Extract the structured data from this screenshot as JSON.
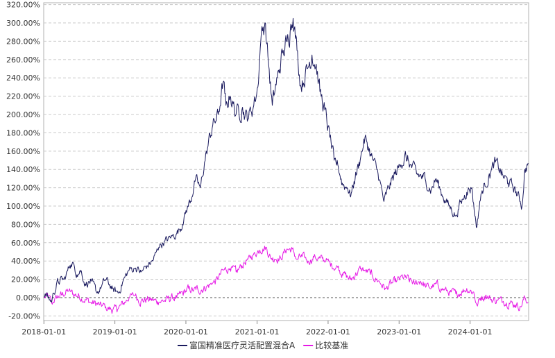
{
  "chart_data": {
    "type": "line",
    "title": "",
    "xlabel": "",
    "ylabel": "",
    "y_unit": "%",
    "ylim": [
      -25,
      322
    ],
    "xlim": [
      "2017-12-31",
      "2024-10-28"
    ],
    "grid": "horizontal-dashed",
    "zero_line": "dashed",
    "legend_position": "bottom-center",
    "y_ticks": [
      {
        "value": 320,
        "label": "320.00%"
      },
      {
        "value": 300,
        "label": "300.00%"
      },
      {
        "value": 280,
        "label": "280.00%"
      },
      {
        "value": 260,
        "label": "260.00%"
      },
      {
        "value": 240,
        "label": "240.00%"
      },
      {
        "value": 220,
        "label": "220.00%"
      },
      {
        "value": 200,
        "label": "200.00%"
      },
      {
        "value": 180,
        "label": "180.00%"
      },
      {
        "value": 160,
        "label": "160.00%"
      },
      {
        "value": 140,
        "label": "140.00%"
      },
      {
        "value": 120,
        "label": "120.00%"
      },
      {
        "value": 100,
        "label": "100.00%"
      },
      {
        "value": 80,
        "label": "80.00%"
      },
      {
        "value": 60,
        "label": "60.00%"
      },
      {
        "value": 40,
        "label": "40.00%"
      },
      {
        "value": 20,
        "label": "20.00%"
      },
      {
        "value": 0,
        "label": "0.00%"
      },
      {
        "value": -20,
        "label": "-20.00%"
      }
    ],
    "x_ticks": [
      {
        "date": "2018-01-01",
        "label": "2018-01-01"
      },
      {
        "date": "2019-01-01",
        "label": "2019-01-01"
      },
      {
        "date": "2020-01-01",
        "label": "2020-01-01"
      },
      {
        "date": "2021-01-01",
        "label": "2021-01-01"
      },
      {
        "date": "2022-01-01",
        "label": "2022-01-01"
      },
      {
        "date": "2023-01-01",
        "label": "2023-01-01"
      },
      {
        "date": "2024-01-01",
        "label": "2024-01-01"
      }
    ],
    "series": [
      {
        "name": "富国精准医疗灵活配置混合A",
        "color": "#1a1a5e",
        "points": [
          [
            "2018-01-02",
            0
          ],
          [
            "2018-01-20",
            2
          ],
          [
            "2018-02-10",
            -5
          ],
          [
            "2018-02-20",
            5
          ],
          [
            "2018-03-15",
            18
          ],
          [
            "2018-04-15",
            20
          ],
          [
            "2018-05-15",
            35
          ],
          [
            "2018-06-01",
            38
          ],
          [
            "2018-06-20",
            25
          ],
          [
            "2018-07-10",
            30
          ],
          [
            "2018-08-01",
            15
          ],
          [
            "2018-09-01",
            18
          ],
          [
            "2018-10-01",
            5
          ],
          [
            "2018-10-20",
            10
          ],
          [
            "2018-11-15",
            20
          ],
          [
            "2018-12-20",
            10
          ],
          [
            "2019-01-20",
            5
          ],
          [
            "2019-02-15",
            20
          ],
          [
            "2019-03-15",
            30
          ],
          [
            "2019-04-15",
            32
          ],
          [
            "2019-05-15",
            28
          ],
          [
            "2019-06-15",
            35
          ],
          [
            "2019-07-15",
            40
          ],
          [
            "2019-08-15",
            55
          ],
          [
            "2019-09-15",
            62
          ],
          [
            "2019-10-15",
            65
          ],
          [
            "2019-11-15",
            70
          ],
          [
            "2019-12-15",
            80
          ],
          [
            "2020-01-10",
            100
          ],
          [
            "2020-02-01",
            110
          ],
          [
            "2020-02-20",
            130
          ],
          [
            "2020-03-15",
            120
          ],
          [
            "2020-04-15",
            160
          ],
          [
            "2020-05-15",
            185
          ],
          [
            "2020-06-15",
            200
          ],
          [
            "2020-07-10",
            235
          ],
          [
            "2020-07-25",
            210
          ],
          [
            "2020-08-15",
            220
          ],
          [
            "2020-09-15",
            200
          ],
          [
            "2020-10-15",
            205
          ],
          [
            "2020-11-15",
            195
          ],
          [
            "2020-12-15",
            210
          ],
          [
            "2021-01-05",
            230
          ],
          [
            "2021-01-20",
            280
          ],
          [
            "2021-02-10",
            300
          ],
          [
            "2021-03-01",
            255
          ],
          [
            "2021-03-20",
            210
          ],
          [
            "2021-04-15",
            240
          ],
          [
            "2021-05-15",
            270
          ],
          [
            "2021-06-01",
            280
          ],
          [
            "2021-06-20",
            290
          ],
          [
            "2021-07-05",
            305
          ],
          [
            "2021-07-25",
            270
          ],
          [
            "2021-08-15",
            230
          ],
          [
            "2021-09-15",
            250
          ],
          [
            "2021-10-10",
            265
          ],
          [
            "2021-11-01",
            255
          ],
          [
            "2021-11-20",
            225
          ],
          [
            "2021-12-15",
            205
          ],
          [
            "2022-01-10",
            175
          ],
          [
            "2022-02-01",
            150
          ],
          [
            "2022-02-20",
            145
          ],
          [
            "2022-03-15",
            125
          ],
          [
            "2022-04-10",
            120
          ],
          [
            "2022-04-27",
            110
          ],
          [
            "2022-05-20",
            130
          ],
          [
            "2022-06-15",
            150
          ],
          [
            "2022-07-01",
            165
          ],
          [
            "2022-07-15",
            175
          ],
          [
            "2022-08-10",
            155
          ],
          [
            "2022-09-15",
            135
          ],
          [
            "2022-10-15",
            105
          ],
          [
            "2022-11-10",
            120
          ],
          [
            "2022-12-10",
            135
          ],
          [
            "2023-01-10",
            145
          ],
          [
            "2023-02-05",
            155
          ],
          [
            "2023-03-01",
            145
          ],
          [
            "2023-04-01",
            135
          ],
          [
            "2023-05-15",
            130
          ],
          [
            "2023-06-15",
            118
          ],
          [
            "2023-07-10",
            130
          ],
          [
            "2023-08-15",
            110
          ],
          [
            "2023-09-15",
            100
          ],
          [
            "2023-10-20",
            90
          ],
          [
            "2023-11-15",
            105
          ],
          [
            "2023-12-15",
            115
          ],
          [
            "2024-01-10",
            120
          ],
          [
            "2024-01-22",
            95
          ],
          [
            "2024-02-05",
            77
          ],
          [
            "2024-02-20",
            105
          ],
          [
            "2024-03-15",
            125
          ],
          [
            "2024-04-15",
            135
          ],
          [
            "2024-05-10",
            148
          ],
          [
            "2024-06-15",
            135
          ],
          [
            "2024-07-15",
            125
          ],
          [
            "2024-08-15",
            120
          ],
          [
            "2024-09-15",
            105
          ],
          [
            "2024-09-24",
            100
          ],
          [
            "2024-10-08",
            140
          ],
          [
            "2024-10-25",
            147
          ]
        ]
      },
      {
        "name": "比较基准",
        "color": "#e619e6",
        "points": [
          [
            "2018-01-02",
            0
          ],
          [
            "2018-01-25",
            2
          ],
          [
            "2018-02-10",
            -6
          ],
          [
            "2018-03-01",
            0
          ],
          [
            "2018-04-01",
            3
          ],
          [
            "2018-05-10",
            8
          ],
          [
            "2018-06-01",
            4
          ],
          [
            "2018-07-01",
            2
          ],
          [
            "2018-08-01",
            -2
          ],
          [
            "2018-09-01",
            -5
          ],
          [
            "2018-10-15",
            -8
          ],
          [
            "2018-11-15",
            -10
          ],
          [
            "2018-12-20",
            -14
          ],
          [
            "2019-01-15",
            -13
          ],
          [
            "2019-02-20",
            -5
          ],
          [
            "2019-03-15",
            0
          ],
          [
            "2019-04-15",
            2
          ],
          [
            "2019-05-15",
            -4
          ],
          [
            "2019-06-15",
            -2
          ],
          [
            "2019-07-15",
            -3
          ],
          [
            "2019-08-15",
            -5
          ],
          [
            "2019-09-15",
            -3
          ],
          [
            "2019-10-15",
            -1
          ],
          [
            "2019-11-15",
            0
          ],
          [
            "2019-12-15",
            5
          ],
          [
            "2020-01-15",
            10
          ],
          [
            "2020-02-10",
            8
          ],
          [
            "2020-03-01",
            10
          ],
          [
            "2020-03-20",
            8
          ],
          [
            "2020-04-15",
            12
          ],
          [
            "2020-05-15",
            15
          ],
          [
            "2020-06-15",
            20
          ],
          [
            "2020-07-10",
            30
          ],
          [
            "2020-08-15",
            32
          ],
          [
            "2020-09-15",
            28
          ],
          [
            "2020-10-15",
            35
          ],
          [
            "2020-11-15",
            42
          ],
          [
            "2020-12-15",
            48
          ],
          [
            "2021-01-15",
            52
          ],
          [
            "2021-02-15",
            55
          ],
          [
            "2021-03-10",
            45
          ],
          [
            "2021-04-01",
            42
          ],
          [
            "2021-05-01",
            44
          ],
          [
            "2021-06-01",
            52
          ],
          [
            "2021-07-01",
            53
          ],
          [
            "2021-07-25",
            42
          ],
          [
            "2021-08-20",
            45
          ],
          [
            "2021-09-20",
            40
          ],
          [
            "2021-10-20",
            44
          ],
          [
            "2021-11-20",
            43
          ],
          [
            "2021-12-20",
            40
          ],
          [
            "2022-01-20",
            35
          ],
          [
            "2022-02-20",
            33
          ],
          [
            "2022-03-15",
            26
          ],
          [
            "2022-04-26",
            20
          ],
          [
            "2022-05-20",
            24
          ],
          [
            "2022-06-20",
            32
          ],
          [
            "2022-07-10",
            30
          ],
          [
            "2022-08-15",
            25
          ],
          [
            "2022-09-15",
            18
          ],
          [
            "2022-10-25",
            10
          ],
          [
            "2022-11-20",
            15
          ],
          [
            "2022-12-20",
            18
          ],
          [
            "2023-01-20",
            22
          ],
          [
            "2023-02-20",
            20
          ],
          [
            "2023-03-20",
            16
          ],
          [
            "2023-04-20",
            18
          ],
          [
            "2023-05-20",
            12
          ],
          [
            "2023-06-20",
            11
          ],
          [
            "2023-07-20",
            14
          ],
          [
            "2023-08-20",
            8
          ],
          [
            "2023-09-20",
            6
          ],
          [
            "2023-10-20",
            4
          ],
          [
            "2023-11-20",
            7
          ],
          [
            "2023-12-15",
            10
          ],
          [
            "2024-01-20",
            6
          ],
          [
            "2024-02-05",
            -8
          ],
          [
            "2024-02-25",
            0
          ],
          [
            "2024-03-20",
            2
          ],
          [
            "2024-04-20",
            -2
          ],
          [
            "2024-05-20",
            -3
          ],
          [
            "2024-06-20",
            -4
          ],
          [
            "2024-07-20",
            -6
          ],
          [
            "2024-08-20",
            -8
          ],
          [
            "2024-09-20",
            -10
          ],
          [
            "2024-10-08",
            0
          ],
          [
            "2024-10-25",
            -5
          ]
        ]
      }
    ]
  }
}
